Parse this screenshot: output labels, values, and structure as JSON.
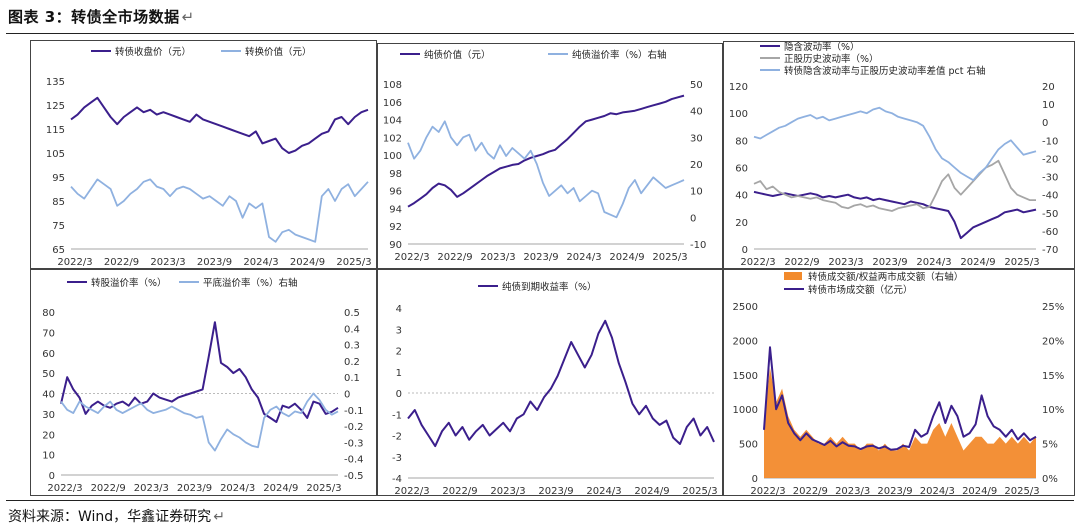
{
  "figure": {
    "title": "图表 3：转债全市场数据",
    "title_mark": "↵",
    "source": "资料来源：Wind，华鑫证券研究",
    "source_mark": "↵"
  },
  "colors": {
    "purple": "#3b1f8c",
    "lightblue": "#8fb1e0",
    "gray": "#a6a6a6",
    "orange": "#f28a2c",
    "axis": "#333333",
    "zero": "#bbbbbb"
  },
  "chart_data": [
    {
      "id": "p1",
      "type": "line",
      "title": "",
      "x_ticks": [
        "2022/3",
        "2022/9",
        "2023/3",
        "2023/9",
        "2024/3",
        "2024/9",
        "2025/3"
      ],
      "ylim": [
        65,
        135
      ],
      "y_ticks": [
        65,
        75,
        85,
        95,
        105,
        115,
        125,
        135
      ],
      "legend": "top",
      "series": [
        {
          "name": "转债收盘价（元）",
          "axis": "left",
          "color": "purple",
          "values": [
            119,
            121,
            124,
            126,
            128,
            124,
            120,
            117,
            120,
            122,
            124,
            122,
            123,
            121,
            122,
            121,
            120,
            119,
            118,
            121,
            119,
            118,
            117,
            116,
            115,
            114,
            113,
            112,
            114,
            109,
            110,
            111,
            107,
            105,
            106,
            108,
            109,
            111,
            113,
            114,
            119,
            120,
            117,
            120,
            122,
            123
          ]
        },
        {
          "name": "转换价值（元）",
          "axis": "left",
          "color": "lightblue",
          "values": [
            91,
            88,
            86,
            90,
            94,
            92,
            90,
            83,
            85,
            88,
            90,
            93,
            94,
            91,
            90,
            87,
            90,
            91,
            90,
            88,
            86,
            87,
            85,
            83,
            87,
            85,
            78,
            84,
            82,
            84,
            70,
            68,
            72,
            73,
            71,
            70,
            69,
            68,
            87,
            90,
            85,
            90,
            92,
            87,
            90,
            93
          ]
        }
      ]
    },
    {
      "id": "p2",
      "type": "line",
      "title": "",
      "x_ticks": [
        "2022/3",
        "2022/9",
        "2023/3",
        "2023/9",
        "2024/3",
        "2024/9",
        "2025/3"
      ],
      "ylim": [
        90,
        108
      ],
      "y_ticks": [
        90,
        92,
        94,
        96,
        98,
        100,
        102,
        104,
        106,
        108
      ],
      "ylim_right": [
        -10,
        50
      ],
      "y_ticks_right": [
        -10,
        0,
        10,
        20,
        30,
        40,
        50
      ],
      "legend": "top",
      "series": [
        {
          "name": "纯债价值（元）",
          "axis": "left",
          "color": "purple",
          "values": [
            94.2,
            94.6,
            95.1,
            95.6,
            96.3,
            96.8,
            96.6,
            96.1,
            95.3,
            95.7,
            96.2,
            96.7,
            97.2,
            97.7,
            98.1,
            98.5,
            98.7,
            98.9,
            99.0,
            99.4,
            99.7,
            99.9,
            100.1,
            100.4,
            100.6,
            101.2,
            101.8,
            102.5,
            103.2,
            103.8,
            104.0,
            104.2,
            104.4,
            104.7,
            104.6,
            104.8,
            104.9,
            105.0,
            105.2,
            105.4,
            105.6,
            105.8,
            106.0,
            106.3,
            106.5,
            106.7
          ]
        },
        {
          "name": "纯债溢价率（%）右轴",
          "axis": "right",
          "color": "lightblue",
          "values": [
            28,
            22,
            25,
            30,
            34,
            32,
            36,
            30,
            27,
            30,
            31,
            25,
            28,
            24,
            22,
            27,
            23,
            26,
            24,
            22,
            25,
            20,
            13,
            8,
            10,
            12,
            9,
            11,
            6,
            8,
            10,
            9,
            2,
            1,
            0,
            5,
            11,
            14,
            9,
            12,
            15,
            13,
            11,
            12,
            13,
            14
          ]
        }
      ]
    },
    {
      "id": "p3",
      "type": "line",
      "title": "",
      "x_ticks": [
        "2022/3",
        "2022/9",
        "2023/3",
        "2023/9",
        "2024/3",
        "2024/9",
        "2025/3"
      ],
      "ylim": [
        0,
        120
      ],
      "y_ticks": [
        0,
        20,
        40,
        60,
        80,
        100,
        120
      ],
      "ylim_right": [
        -70,
        20
      ],
      "y_ticks_right": [
        -70,
        -60,
        -50,
        -40,
        -30,
        -20,
        -10,
        0,
        10,
        20
      ],
      "legend": "top",
      "series": [
        {
          "name": "隐含波动率（%）",
          "axis": "left",
          "color": "purple",
          "values": [
            42,
            41,
            40,
            39,
            40,
            41,
            40,
            39,
            40,
            41,
            40,
            38,
            39,
            38,
            39,
            40,
            38,
            37,
            38,
            36,
            37,
            36,
            35,
            34,
            33,
            35,
            34,
            33,
            31,
            30,
            29,
            28,
            20,
            8,
            12,
            16,
            18,
            20,
            22,
            24,
            27,
            28,
            29,
            27,
            28,
            29
          ]
        },
        {
          "name": "正股历史波动率（%）",
          "axis": "left",
          "color": "gray",
          "values": [
            48,
            50,
            44,
            46,
            42,
            40,
            38,
            39,
            38,
            37,
            38,
            36,
            35,
            34,
            31,
            30,
            32,
            33,
            31,
            32,
            30,
            29,
            28,
            30,
            31,
            32,
            33,
            30,
            31,
            40,
            50,
            55,
            45,
            40,
            45,
            50,
            55,
            60,
            62,
            65,
            55,
            45,
            40,
            38,
            36,
            36
          ]
        },
        {
          "name": "转债隐含波动率与正股历史波动率差值 pct 右轴",
          "axis": "right",
          "color": "lightblue",
          "values": [
            -8,
            -9,
            -7,
            -5,
            -3,
            -2,
            0,
            2,
            3,
            4,
            2,
            3,
            1,
            2,
            3,
            4,
            5,
            6,
            5,
            7,
            8,
            6,
            5,
            3,
            2,
            1,
            0,
            -2,
            -8,
            -15,
            -20,
            -22,
            -25,
            -28,
            -30,
            -32,
            -28,
            -25,
            -20,
            -15,
            -12,
            -10,
            -14,
            -18,
            -17,
            -16
          ]
        }
      ]
    },
    {
      "id": "p4",
      "type": "line",
      "title": "",
      "x_ticks": [
        "2022/3",
        "2022/9",
        "2023/3",
        "2023/9",
        "2024/3",
        "2024/9",
        "2025/3"
      ],
      "ylim": [
        0,
        80
      ],
      "y_ticks": [
        0,
        10,
        20,
        30,
        40,
        50,
        60,
        70,
        80
      ],
      "ylim_right": [
        -0.5,
        0.5
      ],
      "y_ticks_right": [
        -0.5,
        -0.4,
        -0.3,
        -0.2,
        -0.1,
        0,
        0.1,
        0.2,
        0.3,
        0.4,
        0.5
      ],
      "legend": "top",
      "series": [
        {
          "name": "转股溢价率（%）",
          "axis": "left",
          "color": "purple",
          "values": [
            35,
            48,
            42,
            38,
            30,
            34,
            36,
            34,
            33,
            35,
            36,
            34,
            38,
            35,
            36,
            40,
            38,
            37,
            36,
            38,
            39,
            40,
            41,
            42,
            58,
            75,
            55,
            53,
            50,
            52,
            48,
            42,
            38,
            30,
            28,
            26,
            34,
            33,
            35,
            32,
            28,
            36,
            35,
            30,
            31,
            33
          ]
        },
        {
          "name": "平底溢价率（%）右轴",
          "axis": "right",
          "color": "lightblue",
          "values": [
            -0.05,
            -0.1,
            -0.12,
            -0.05,
            -0.08,
            -0.1,
            -0.12,
            -0.08,
            -0.05,
            -0.1,
            -0.12,
            -0.1,
            -0.08,
            -0.06,
            -0.1,
            -0.12,
            -0.11,
            -0.1,
            -0.08,
            -0.1,
            -0.12,
            -0.13,
            -0.15,
            -0.14,
            -0.3,
            -0.35,
            -0.28,
            -0.22,
            -0.25,
            -0.27,
            -0.3,
            -0.32,
            -0.33,
            -0.15,
            -0.1,
            -0.08,
            -0.12,
            -0.14,
            -0.11,
            -0.12,
            -0.05,
            0.0,
            -0.04,
            -0.1,
            -0.13,
            -0.11
          ]
        }
      ]
    },
    {
      "id": "p5",
      "type": "line",
      "title": "",
      "x_ticks": [
        "2022/3",
        "2022/9",
        "2023/3",
        "2023/9",
        "2024/3",
        "2024/9",
        "2025/3"
      ],
      "ylim": [
        -4,
        4
      ],
      "y_ticks": [
        -4,
        -3,
        -2,
        -1,
        0,
        1,
        2,
        3,
        4
      ],
      "legend": "top",
      "series": [
        {
          "name": "纯债到期收益率（%）",
          "axis": "left",
          "color": "purple",
          "values": [
            -1.2,
            -0.8,
            -1.5,
            -2.0,
            -2.5,
            -1.8,
            -1.4,
            -2.0,
            -1.6,
            -2.2,
            -1.8,
            -1.5,
            -2.0,
            -1.7,
            -1.4,
            -1.8,
            -1.2,
            -1.0,
            -0.4,
            -0.8,
            -0.2,
            0.2,
            0.8,
            1.6,
            2.4,
            1.8,
            1.2,
            1.8,
            2.8,
            3.4,
            2.6,
            1.4,
            0.5,
            -0.5,
            -1.0,
            -0.6,
            -1.2,
            -1.5,
            -1.3,
            -2.1,
            -2.4,
            -1.6,
            -1.2,
            -2.0,
            -1.6,
            -2.3
          ]
        }
      ]
    },
    {
      "id": "p6",
      "type": "bar",
      "title": "",
      "x_ticks": [
        "2022/3",
        "2022/9",
        "2023/3",
        "2023/9",
        "2024/3",
        "2024/9",
        "2025/3"
      ],
      "ylim": [
        0,
        2500
      ],
      "y_ticks": [
        0,
        500,
        1000,
        1500,
        2000,
        2500
      ],
      "ylim_right": [
        0,
        25
      ],
      "y_ticks_right": [
        "0%",
        "5%",
        "10%",
        "15%",
        "20%",
        "25%"
      ],
      "legend": "top",
      "series": [
        {
          "name": "转债成交额/权益两市成交额（右轴）",
          "axis": "right",
          "color": "orange",
          "kind": "area",
          "values": [
            8,
            16,
            11,
            13,
            9,
            7,
            6,
            7,
            6,
            5,
            5,
            6,
            5,
            6,
            5,
            5,
            4,
            5,
            5,
            4,
            5,
            4,
            4,
            5,
            4,
            6,
            5,
            5,
            7,
            8,
            6,
            8,
            6,
            4,
            5,
            6,
            6,
            5,
            5,
            6,
            5,
            6,
            5,
            6,
            5,
            6
          ]
        },
        {
          "name": "转债市场成交额（亿元）",
          "axis": "left",
          "color": "purple",
          "kind": "line",
          "values": [
            700,
            1900,
            1000,
            1200,
            800,
            650,
            550,
            650,
            560,
            520,
            480,
            540,
            460,
            520,
            470,
            460,
            420,
            460,
            470,
            430,
            460,
            410,
            420,
            470,
            450,
            700,
            600,
            650,
            900,
            1100,
            800,
            1050,
            900,
            600,
            650,
            780,
            1200,
            900,
            750,
            700,
            600,
            700,
            560,
            650,
            550,
            600
          ]
        }
      ]
    }
  ]
}
